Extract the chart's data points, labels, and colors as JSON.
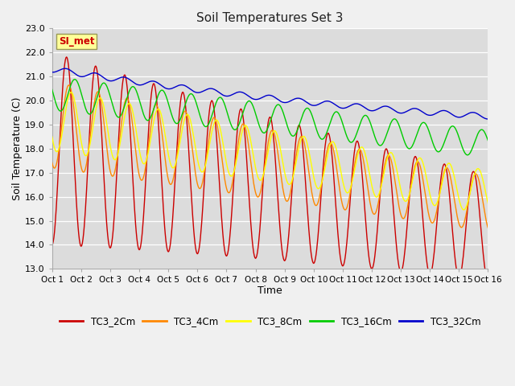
{
  "title": "Soil Temperatures Set 3",
  "xlabel": "Time",
  "ylabel": "Soil Temperature (C)",
  "ylim": [
    13.0,
    23.0
  ],
  "yticks": [
    13.0,
    14.0,
    15.0,
    16.0,
    17.0,
    18.0,
    19.0,
    20.0,
    21.0,
    22.0,
    23.0
  ],
  "xtick_labels": [
    "Oct 1",
    "Oct 2",
    "Oct 3",
    "Oct 4",
    "Oct 5",
    "Oct 6",
    "Oct 7",
    "Oct 8",
    "Oct 9",
    "Oct 10",
    "Oct 11",
    "Oct 12",
    "Oct 13",
    "Oct 14",
    "Oct 15",
    "Oct 16"
  ],
  "legend_labels": [
    "TC3_2Cm",
    "TC3_4Cm",
    "TC3_8Cm",
    "TC3_16Cm",
    "TC3_32Cm"
  ],
  "colors": [
    "#cc0000",
    "#ff8800",
    "#ffff00",
    "#00cc00",
    "#0000cc"
  ],
  "annotation_text": "SI_met",
  "annotation_color": "#cc0000",
  "annotation_bg": "#ffff99",
  "background_color": "#e8e8e8",
  "n_points": 721,
  "days": 15
}
